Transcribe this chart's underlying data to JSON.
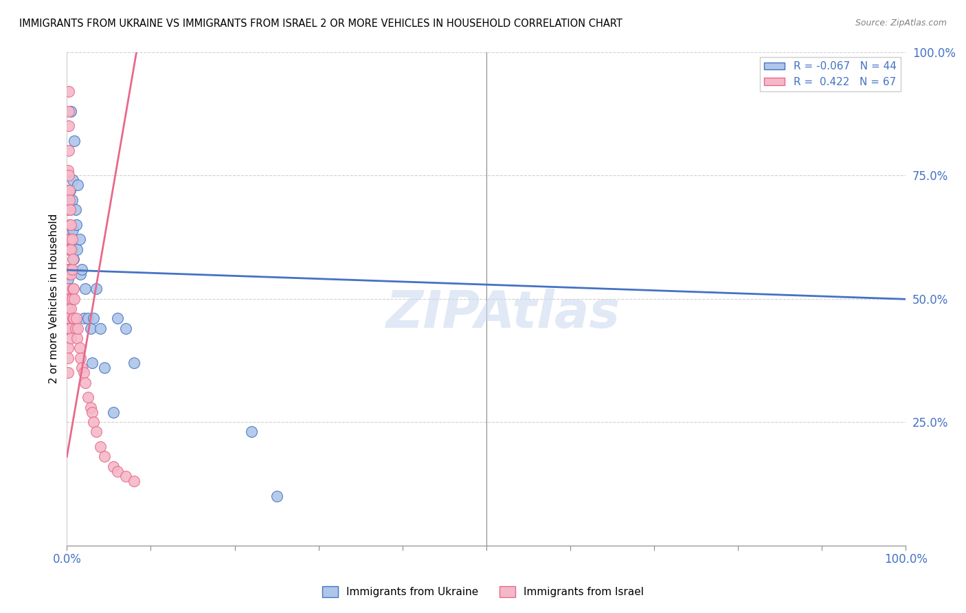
{
  "title": "IMMIGRANTS FROM UKRAINE VS IMMIGRANTS FROM ISRAEL 2 OR MORE VEHICLES IN HOUSEHOLD CORRELATION CHART",
  "source": "Source: ZipAtlas.com",
  "ylabel": "2 or more Vehicles in Household",
  "legend_label_ukraine": "Immigrants from Ukraine",
  "legend_label_israel": "Immigrants from Israel",
  "watermark": "ZIPAtlas",
  "R_ukraine": -0.067,
  "N_ukraine": 44,
  "R_israel": 0.422,
  "N_israel": 67,
  "ukraine_color": "#aec6e8",
  "ukraine_edge_color": "#4472c4",
  "israel_color": "#f4b8c8",
  "israel_edge_color": "#e8688a",
  "ukraine_line_color": "#4472c4",
  "israel_line_color": "#e8688a",
  "grid_color": "#d0d0d0",
  "tick_color": "#4472c4",
  "ukraine_x": [
    0.001,
    0.001,
    0.002,
    0.002,
    0.002,
    0.002,
    0.003,
    0.003,
    0.003,
    0.003,
    0.004,
    0.004,
    0.004,
    0.005,
    0.005,
    0.005,
    0.006,
    0.006,
    0.007,
    0.007,
    0.008,
    0.009,
    0.01,
    0.011,
    0.012,
    0.013,
    0.015,
    0.016,
    0.018,
    0.02,
    0.022,
    0.025,
    0.028,
    0.03,
    0.032,
    0.035,
    0.04,
    0.045,
    0.055,
    0.06,
    0.07,
    0.08,
    0.22,
    0.25
  ],
  "ukraine_y": [
    0.54,
    0.5,
    0.52,
    0.48,
    0.56,
    0.44,
    0.72,
    0.68,
    0.64,
    0.6,
    0.72,
    0.68,
    0.6,
    0.88,
    0.56,
    0.5,
    0.7,
    0.6,
    0.74,
    0.64,
    0.58,
    0.82,
    0.68,
    0.65,
    0.6,
    0.73,
    0.62,
    0.55,
    0.56,
    0.46,
    0.52,
    0.46,
    0.44,
    0.37,
    0.46,
    0.52,
    0.44,
    0.36,
    0.27,
    0.46,
    0.44,
    0.37,
    0.23,
    0.1
  ],
  "israel_x": [
    0.001,
    0.001,
    0.001,
    0.001,
    0.001,
    0.001,
    0.001,
    0.001,
    0.001,
    0.001,
    0.001,
    0.002,
    0.002,
    0.002,
    0.002,
    0.002,
    0.002,
    0.002,
    0.002,
    0.002,
    0.003,
    0.003,
    0.003,
    0.003,
    0.003,
    0.003,
    0.003,
    0.003,
    0.004,
    0.004,
    0.004,
    0.004,
    0.004,
    0.005,
    0.005,
    0.005,
    0.005,
    0.005,
    0.006,
    0.006,
    0.006,
    0.007,
    0.007,
    0.007,
    0.008,
    0.008,
    0.009,
    0.01,
    0.011,
    0.012,
    0.013,
    0.015,
    0.016,
    0.018,
    0.02,
    0.022,
    0.025,
    0.028,
    0.03,
    0.032,
    0.035,
    0.04,
    0.045,
    0.055,
    0.06,
    0.07,
    0.08
  ],
  "israel_y": [
    0.52,
    0.5,
    0.48,
    0.46,
    0.44,
    0.4,
    0.38,
    0.35,
    0.76,
    0.72,
    0.68,
    0.92,
    0.88,
    0.85,
    0.8,
    0.75,
    0.62,
    0.56,
    0.5,
    0.44,
    0.72,
    0.68,
    0.62,
    0.7,
    0.65,
    0.6,
    0.55,
    0.5,
    0.68,
    0.62,
    0.56,
    0.5,
    0.44,
    0.65,
    0.6,
    0.55,
    0.48,
    0.42,
    0.62,
    0.56,
    0.5,
    0.58,
    0.52,
    0.46,
    0.52,
    0.46,
    0.5,
    0.44,
    0.46,
    0.42,
    0.44,
    0.4,
    0.38,
    0.36,
    0.35,
    0.33,
    0.3,
    0.28,
    0.27,
    0.25,
    0.23,
    0.2,
    0.18,
    0.16,
    0.15,
    0.14,
    0.13
  ],
  "ukraine_line_x": [
    0.0,
    1.0
  ],
  "ukraine_line_y": [
    0.558,
    0.499
  ],
  "israel_line_x": [
    0.0,
    0.085
  ],
  "israel_line_y": [
    0.18,
    1.02
  ],
  "xlim": [
    0,
    1.0
  ],
  "ylim": [
    0,
    1.0
  ],
  "xticks": [
    0,
    0.1,
    0.2,
    0.3,
    0.4,
    0.5,
    0.6,
    0.7,
    0.8,
    0.9,
    1.0
  ],
  "ytick_pos": [
    0.25,
    0.5,
    0.75,
    1.0
  ],
  "ytick_labels": [
    "25.0%",
    "50.0%",
    "75.0%",
    "100.0%"
  ]
}
